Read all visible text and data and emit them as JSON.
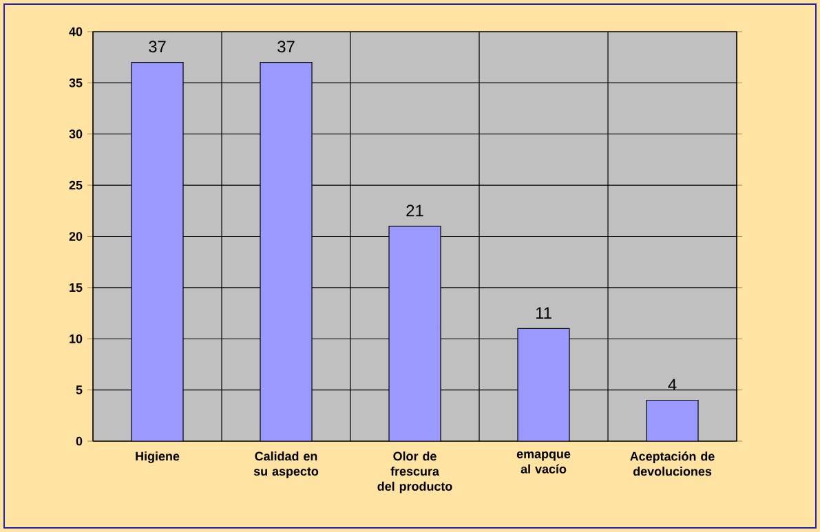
{
  "chart_data": {
    "type": "bar",
    "categories": [
      "Higiene",
      "Calidad en su aspecto",
      "Olor de frescura del producto",
      "emapque al vacío",
      "Aceptación de devoluciones"
    ],
    "values": [
      37,
      37,
      21,
      11,
      4
    ],
    "color": "#9999ff",
    "ylim": [
      0,
      40
    ],
    "yticks": [
      0,
      5,
      10,
      15,
      20,
      25,
      30,
      35,
      40
    ],
    "grid": true,
    "data_labels": true
  }
}
